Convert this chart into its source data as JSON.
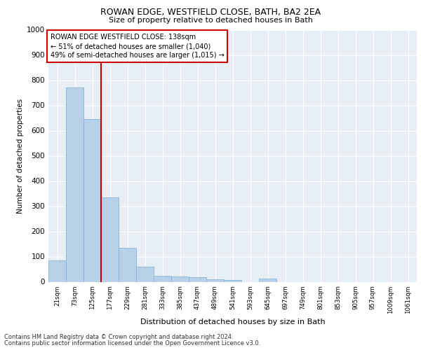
{
  "title1": "ROWAN EDGE, WESTFIELD CLOSE, BATH, BA2 2EA",
  "title2": "Size of property relative to detached houses in Bath",
  "xlabel": "Distribution of detached houses by size in Bath",
  "ylabel": "Number of detached properties",
  "bar_color": "#b8d0e8",
  "bar_edge_color": "#7aafd4",
  "background_color": "#e8eef5",
  "grid_color": "#ffffff",
  "categories": [
    "21sqm",
    "73sqm",
    "125sqm",
    "177sqm",
    "229sqm",
    "281sqm",
    "333sqm",
    "385sqm",
    "437sqm",
    "489sqm",
    "541sqm",
    "593sqm",
    "645sqm",
    "697sqm",
    "749sqm",
    "801sqm",
    "853sqm",
    "905sqm",
    "957sqm",
    "1009sqm",
    "1061sqm"
  ],
  "values": [
    85,
    770,
    645,
    335,
    135,
    60,
    25,
    22,
    18,
    10,
    8,
    0,
    12,
    0,
    0,
    0,
    0,
    0,
    0,
    0,
    0
  ],
  "red_line_index": 2.5,
  "annotation_text": "ROWAN EDGE WESTFIELD CLOSE: 138sqm\n← 51% of detached houses are smaller (1,040)\n49% of semi-detached houses are larger (1,015) →",
  "annotation_box_color": "#ffffff",
  "annotation_border_color": "#cc0000",
  "ylim": [
    0,
    1000
  ],
  "yticks": [
    0,
    100,
    200,
    300,
    400,
    500,
    600,
    700,
    800,
    900,
    1000
  ],
  "footnote1": "Contains HM Land Registry data © Crown copyright and database right 2024.",
  "footnote2": "Contains public sector information licensed under the Open Government Licence v3.0."
}
